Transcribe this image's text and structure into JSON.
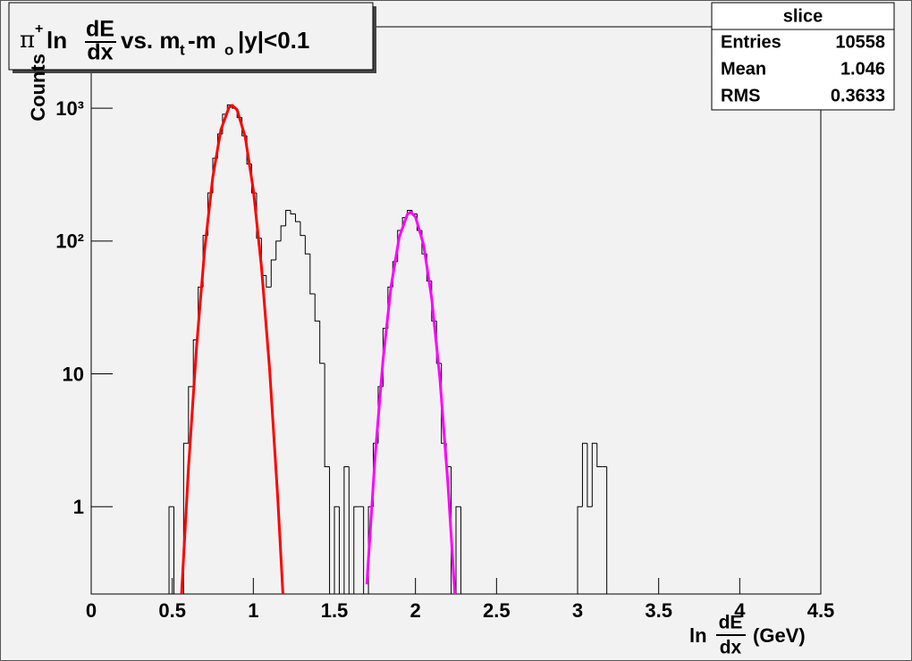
{
  "chart_data": {
    "type": "histogram",
    "title": {
      "symbol": "π",
      "charge": "+",
      "ln": "ln",
      "numerator": "dE",
      "denominator": "dx",
      "vs": "vs. m",
      "sub1": "t",
      "minus": "-m",
      "sub2": "o",
      "cut": "|y|<0.1"
    },
    "xlabel": {
      "ln": "ln",
      "numerator": "dE",
      "denominator": "dx",
      "unit": "(GeV)"
    },
    "ylabel": "Counts",
    "log_y": true,
    "xlim": [
      0,
      4.5
    ],
    "ylim": [
      0.22,
      4100
    ],
    "xticks": [
      0,
      0.5,
      1,
      1.5,
      2,
      2.5,
      3,
      3.5,
      4,
      4.5
    ],
    "yticks": [
      1,
      10,
      {
        "value": 100,
        "label": "10²"
      },
      {
        "value": 1000,
        "label": "10³"
      }
    ],
    "color": "#000000",
    "bins": [
      0.45,
      0.48,
      0.51,
      0.54,
      0.57,
      0.6,
      0.63,
      0.66,
      0.69,
      0.72,
      0.75,
      0.78,
      0.81,
      0.84,
      0.87,
      0.9,
      0.93,
      0.96,
      0.99,
      1.02,
      1.05,
      1.08,
      1.11,
      1.14,
      1.17,
      1.2,
      1.23,
      1.26,
      1.29,
      1.32,
      1.35,
      1.38,
      1.41,
      1.44,
      1.47,
      1.5,
      1.53,
      1.56,
      1.59,
      1.62,
      1.65,
      1.68,
      1.71,
      1.74,
      1.77,
      1.8,
      1.83,
      1.86,
      1.89,
      1.92,
      1.95,
      1.98,
      2.01,
      2.04,
      2.07,
      2.1,
      2.13,
      2.16,
      2.19,
      2.22,
      2.25,
      2.28,
      2.31,
      2.34,
      2.37,
      2.4,
      2.43,
      2.46,
      2.49,
      2.52,
      2.55,
      2.58,
      2.61,
      2.64,
      2.67,
      2.7,
      2.73,
      2.76,
      2.79,
      2.82,
      2.85,
      2.88,
      2.91,
      2.94,
      2.97,
      3.0,
      3.03,
      3.06,
      3.09,
      3.12,
      3.15,
      3.18,
      3.21
    ],
    "values": [
      0,
      1,
      0,
      0,
      3,
      8,
      18,
      45,
      110,
      230,
      420,
      640,
      900,
      1060,
      1000,
      850,
      620,
      380,
      230,
      105,
      55,
      45,
      72,
      100,
      130,
      170,
      160,
      140,
      110,
      80,
      40,
      25,
      12,
      2,
      0,
      1,
      0,
      2,
      0,
      1,
      1,
      0,
      1,
      3,
      8,
      22,
      45,
      70,
      120,
      150,
      170,
      160,
      120,
      80,
      50,
      25,
      12,
      3,
      2,
      0,
      1,
      0,
      0,
      0,
      0,
      0,
      0,
      0,
      0,
      0,
      0,
      0,
      0,
      0,
      0,
      0,
      0,
      0,
      0,
      0,
      0,
      0,
      0,
      0,
      0,
      1,
      3,
      1,
      3,
      2,
      2,
      0
    ],
    "fits": [
      {
        "color": "#ff0000",
        "x": [
          0.55,
          0.6,
          0.65,
          0.7,
          0.75,
          0.8,
          0.85,
          0.87,
          0.9,
          0.95,
          1.0,
          1.05,
          1.1,
          1.15,
          1.2
        ],
        "values": [
          0.15,
          1.96,
          16.1,
          87,
          303,
          688,
          1015,
          1050,
          971,
          605,
          243,
          64,
          11,
          1.2,
          0.088
        ]
      },
      {
        "color": "#ff00ff",
        "x": [
          1.7,
          1.75,
          1.8,
          1.85,
          1.9,
          1.95,
          1.97,
          2.0,
          2.05,
          2.1,
          2.15,
          2.2,
          2.25
        ],
        "values": [
          0.26,
          2.3,
          12.8,
          46,
          107,
          159,
          165,
          152,
          94,
          37,
          9.4,
          1.5,
          0.16
        ]
      }
    ],
    "stats": {
      "title": "slice",
      "rows": [
        {
          "label": "Entries",
          "value": 10558
        },
        {
          "label": "Mean",
          "value": 1.046
        },
        {
          "label": "RMS",
          "value": 0.3633
        }
      ]
    }
  }
}
